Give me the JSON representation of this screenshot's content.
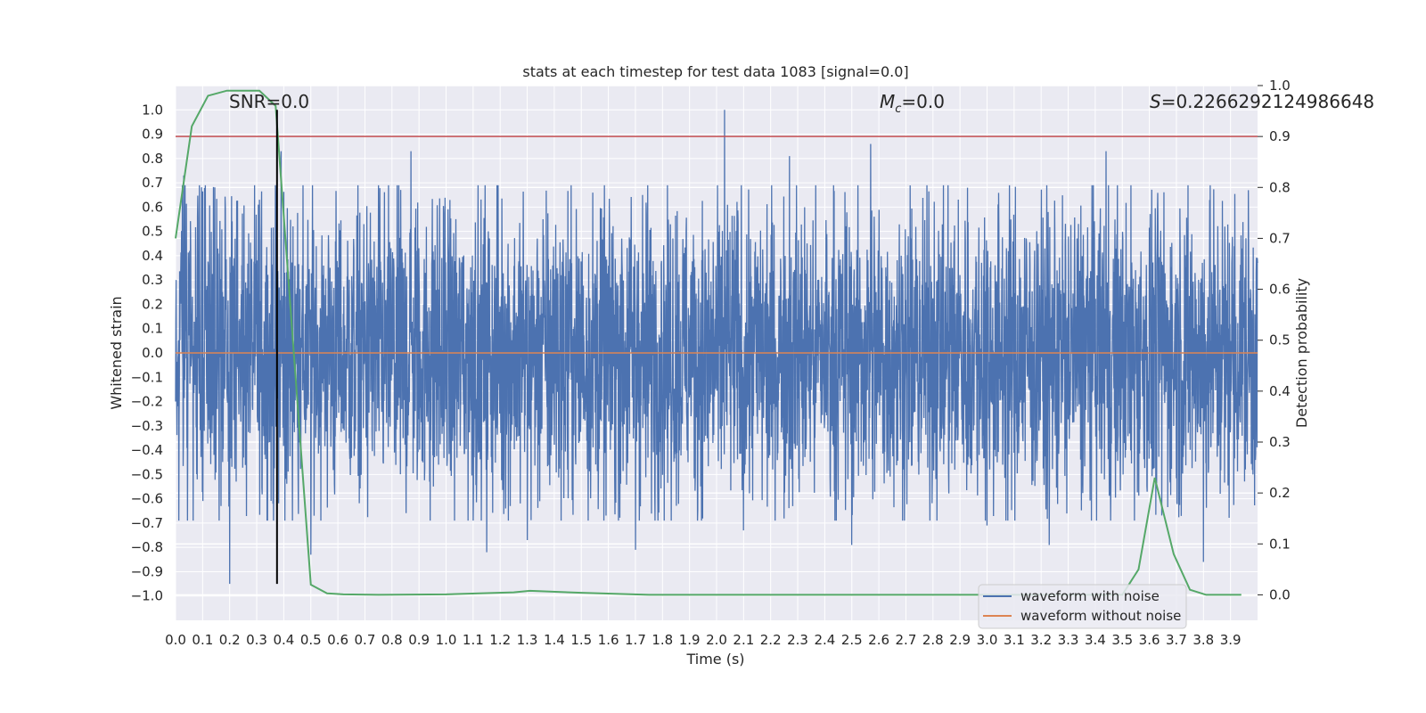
{
  "chart_data": {
    "type": "line",
    "title": "stats at each timestep for test data 1083 [signal=0.0]",
    "xlabel": "Time (s)",
    "ylabel": "Whitened strain",
    "y2label": "Detection probability",
    "xlim": [
      0.0,
      4.0
    ],
    "ylim": [
      -1.1,
      1.1
    ],
    "y2lim": [
      -0.05,
      1.0
    ],
    "x_ticks": [
      "0.0",
      "0.1",
      "0.2",
      "0.3",
      "0.4",
      "0.5",
      "0.6",
      "0.7",
      "0.8",
      "0.9",
      "1.0",
      "1.1",
      "1.2",
      "1.3",
      "1.4",
      "1.5",
      "1.6",
      "1.7",
      "1.8",
      "1.9",
      "2.0",
      "2.1",
      "2.2",
      "2.3",
      "2.4",
      "2.5",
      "2.6",
      "2.7",
      "2.8",
      "2.9",
      "3.0",
      "3.1",
      "3.2",
      "3.3",
      "3.4",
      "3.5",
      "3.6",
      "3.7",
      "3.8",
      "3.9"
    ],
    "y_ticks": [
      "1.0",
      "0.9",
      "0.8",
      "0.7",
      "0.6",
      "0.5",
      "0.4",
      "0.3",
      "0.2",
      "0.1",
      "0.0",
      "-0.1",
      "-0.2",
      "-0.3",
      "-0.4",
      "-0.5",
      "-0.6",
      "-0.7",
      "-0.8",
      "-0.9",
      "-1.0"
    ],
    "y2_ticks": [
      "1.0",
      "0.9",
      "0.8",
      "0.7",
      "0.6",
      "0.5",
      "0.4",
      "0.3",
      "0.2",
      "0.1",
      "0.0"
    ],
    "annotations": {
      "snr": "SNR=0.0",
      "mc_symbol": "M",
      "mc_sub": "c",
      "mc_value": "=0.0",
      "s_symbol": "S",
      "s_value": "=0.2266292124986648"
    },
    "grid": true,
    "legend_position": "lower right",
    "legend": [
      "waveform with noise",
      "waveform without noise"
    ],
    "colors": {
      "noisy": "#4c72b0",
      "clean": "#dd8452",
      "probability": "#55a868",
      "threshold": "#c44e52",
      "marker": "#000000",
      "background": "#eaeaf2"
    },
    "series": [
      {
        "name": "waveform with noise",
        "noise_envelope": {
          "typical_abs": 0.35,
          "notable_peaks": [
            {
              "x": 0.03,
              "y": 0.73
            },
            {
              "x": 0.08,
              "y": -0.52
            },
            {
              "x": 0.2,
              "y": -0.95
            },
            {
              "x": 0.36,
              "y": -0.62
            },
            {
              "x": 0.39,
              "y": 0.83
            },
            {
              "x": 0.5,
              "y": -0.83
            },
            {
              "x": 0.87,
              "y": 0.83
            },
            {
              "x": 1.15,
              "y": -0.82
            },
            {
              "x": 1.3,
              "y": -0.77
            },
            {
              "x": 1.7,
              "y": -0.81
            },
            {
              "x": 2.03,
              "y": 1.0
            },
            {
              "x": 2.1,
              "y": -0.73
            },
            {
              "x": 2.27,
              "y": 0.81
            },
            {
              "x": 2.5,
              "y": -0.79
            },
            {
              "x": 2.57,
              "y": 0.86
            },
            {
              "x": 3.0,
              "y": -0.71
            },
            {
              "x": 3.23,
              "y": -0.79
            },
            {
              "x": 3.44,
              "y": 0.83
            },
            {
              "x": 3.8,
              "y": -0.86
            }
          ]
        }
      },
      {
        "name": "waveform without noise",
        "x": [
          0.0,
          4.0
        ],
        "y": [
          0.0,
          0.0
        ]
      },
      {
        "name": "detection probability",
        "axis": "right",
        "x": [
          0.0,
          0.06,
          0.12,
          0.19,
          0.25,
          0.31,
          0.37,
          0.5,
          0.56,
          0.62,
          0.75,
          1.0,
          1.25,
          1.31,
          1.5,
          1.75,
          2.0,
          2.5,
          3.0,
          3.25,
          3.5,
          3.56,
          3.62,
          3.69,
          3.75,
          3.81,
          3.94
        ],
        "y": [
          0.7,
          0.92,
          0.98,
          0.99,
          0.99,
          0.99,
          0.96,
          0.02,
          0.003,
          0.001,
          0.0,
          0.001,
          0.005,
          0.008,
          0.004,
          0.0,
          0.0,
          0.0,
          0.0,
          0.0,
          0.0,
          0.05,
          0.23,
          0.08,
          0.01,
          0.0,
          0.0
        ]
      }
    ],
    "threshold": {
      "axis": "right",
      "value": 0.9
    },
    "marker_x": 0.375
  }
}
